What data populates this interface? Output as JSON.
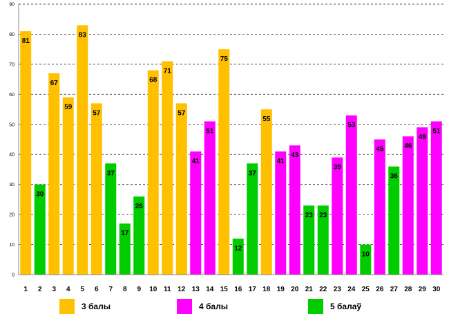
{
  "chart_data": {
    "type": "bar",
    "categories": [
      "1",
      "2",
      "3",
      "4",
      "5",
      "6",
      "7",
      "8",
      "9",
      "10",
      "11",
      "12",
      "13",
      "14",
      "15",
      "16",
      "17",
      "18",
      "19",
      "20",
      "21",
      "22",
      "23",
      "24",
      "25",
      "26",
      "27",
      "28",
      "29",
      "30"
    ],
    "values": [
      81,
      30,
      67,
      59,
      83,
      57,
      37,
      17,
      26,
      68,
      71,
      57,
      41,
      51,
      75,
      12,
      37,
      55,
      41,
      43,
      23,
      23,
      39,
      53,
      10,
      45,
      36,
      46,
      49,
      51
    ],
    "groups": [
      "g3",
      "g5",
      "g3",
      "g3",
      "g3",
      "g3",
      "g5",
      "g5",
      "g5",
      "g3",
      "g3",
      "g3",
      "g4",
      "g4",
      "g3",
      "g5",
      "g5",
      "g3",
      "g4",
      "g4",
      "g5",
      "g5",
      "g4",
      "g4",
      "g5",
      "g4",
      "g5",
      "g4",
      "g4",
      "g4"
    ],
    "yticks": [
      "0",
      "10",
      "20",
      "30",
      "40",
      "50",
      "60",
      "70",
      "80",
      "90"
    ],
    "ylim": [
      0,
      90
    ],
    "grid": true,
    "title": "",
    "xlabel": "",
    "ylabel": "",
    "legend_position": "bottom",
    "series": [
      {
        "key": "g3",
        "name": "3 балы",
        "color": "#FFC000"
      },
      {
        "key": "g4",
        "name": "4 балы",
        "color": "#FF00FF"
      },
      {
        "key": "g5",
        "name": "5 балаў",
        "color": "#00CC00"
      }
    ]
  }
}
